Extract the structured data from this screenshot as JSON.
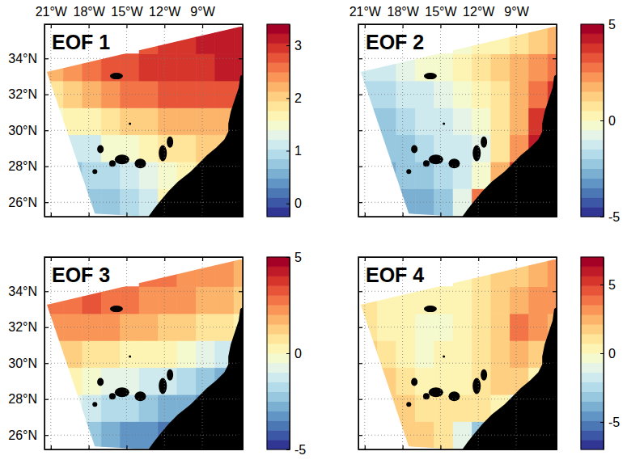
{
  "chart_data": [
    {
      "type": "heatmap",
      "title": "EOF 1",
      "x": [
        -20.75,
        -19.25,
        -17.75,
        -16.25,
        -14.75,
        -13.25,
        -11.75,
        -10.25,
        -8.75,
        -7.25,
        -5.75
      ],
      "y": [
        26,
        27.5,
        29,
        30.5,
        32,
        33.5,
        35
      ],
      "cells": [
        [
          null,
          null,
          0.7,
          0.8,
          1.0,
          1.1,
          1.6,
          null,
          null,
          null,
          null
        ],
        [
          null,
          0.8,
          0.9,
          1.0,
          1.2,
          1.3,
          1.5,
          1.7,
          1.9,
          null,
          null
        ],
        [
          null,
          1.1,
          1.2,
          1.4,
          1.5,
          1.7,
          1.8,
          1.9,
          2.0,
          2.0,
          null
        ],
        [
          1.5,
          1.6,
          1.7,
          1.9,
          2.0,
          2.1,
          2.2,
          2.2,
          2.3,
          2.3,
          null
        ],
        [
          1.9,
          2.0,
          2.2,
          2.4,
          2.5,
          2.6,
          2.7,
          2.7,
          2.8,
          2.8,
          2.8
        ],
        [
          2.3,
          2.4,
          2.6,
          2.7,
          2.8,
          2.9,
          2.9,
          3.0,
          3.0,
          3.1,
          3.1
        ],
        [
          null,
          null,
          null,
          null,
          null,
          2.8,
          2.9,
          3.0,
          3.1,
          3.1,
          3.2
        ]
      ],
      "xlim": [
        -21.5,
        -5.8
      ],
      "ylim": [
        25.2,
        35.9
      ],
      "xticks": [
        {
          "value": -21,
          "label": "21°W"
        },
        {
          "value": -18,
          "label": "18°W"
        },
        {
          "value": -15,
          "label": "15°W"
        },
        {
          "value": -12,
          "label": "12°W"
        },
        {
          "value": -9,
          "label": "9°W"
        }
      ],
      "yticks": [
        {
          "value": 26,
          "label": "26°N"
        },
        {
          "value": 28,
          "label": "28°N"
        },
        {
          "value": 30,
          "label": "30°N"
        },
        {
          "value": 32,
          "label": "32°N"
        },
        {
          "value": 34,
          "label": "34°N"
        }
      ],
      "grid": true,
      "colorbar": {
        "range": [
          -0.25,
          3.4
        ],
        "ticks": [
          0,
          1,
          2,
          3
        ]
      }
    },
    {
      "type": "heatmap",
      "title": "EOF 2",
      "x": [
        -20.75,
        -19.25,
        -17.75,
        -16.25,
        -14.75,
        -13.25,
        -11.75,
        -10.25,
        -8.75,
        -7.25,
        -5.75
      ],
      "y": [
        26,
        27.5,
        29,
        30.5,
        32,
        33.5,
        35
      ],
      "cells": [
        [
          null,
          null,
          -3.0,
          -2.7,
          -2.2,
          -1.0,
          2.5,
          null,
          null,
          null,
          null
        ],
        [
          null,
          -2.8,
          -2.5,
          -2.2,
          -1.8,
          -1.2,
          -0.2,
          1.5,
          3.5,
          null,
          null
        ],
        [
          null,
          -2.4,
          -2.1,
          -1.8,
          -1.5,
          -1.2,
          -0.6,
          0.5,
          2.0,
          4.0,
          null
        ],
        [
          -2.4,
          -2.1,
          -1.8,
          -1.5,
          -1.2,
          -0.8,
          -0.3,
          0.5,
          1.8,
          3.5,
          null
        ],
        [
          -2.0,
          -1.7,
          -1.4,
          -1.1,
          -0.8,
          -0.4,
          0,
          0.6,
          1.5,
          2.5,
          3.5
        ],
        [
          -1.5,
          -1.2,
          -0.8,
          -0.5,
          -0.2,
          0.2,
          0.5,
          1.0,
          1.5,
          2.0,
          2.5
        ],
        [
          null,
          null,
          null,
          null,
          null,
          -0.3,
          0,
          0.3,
          0.8,
          1.2,
          1.5
        ]
      ],
      "xlim": [
        -21.5,
        -5.8
      ],
      "ylim": [
        25.2,
        35.9
      ],
      "xticks": [
        {
          "value": -21,
          "label": "21°W"
        },
        {
          "value": -18,
          "label": "18°W"
        },
        {
          "value": -15,
          "label": "15°W"
        },
        {
          "value": -12,
          "label": "12°W"
        },
        {
          "value": -9,
          "label": "9°W"
        }
      ],
      "yticks": [
        26,
        28,
        30,
        32,
        34
      ],
      "grid": true,
      "tick_labels": "x",
      "colorbar": {
        "range": [
          -5,
          5
        ],
        "ticks": [
          -5,
          0,
          5
        ]
      }
    },
    {
      "type": "heatmap",
      "title": "EOF 3",
      "x": [
        -20.75,
        -19.25,
        -17.75,
        -16.25,
        -14.75,
        -13.25,
        -11.75,
        -10.25,
        -8.75,
        -7.25,
        -5.75
      ],
      "y": [
        26,
        27.5,
        29,
        30.5,
        32,
        33.5,
        35
      ],
      "cells": [
        [
          null,
          null,
          -2.4,
          -2.8,
          -3.1,
          -3.4,
          -3.8,
          null,
          null,
          null,
          null
        ],
        [
          null,
          -1.0,
          -1.4,
          -1.7,
          -2.0,
          -2.3,
          -2.6,
          -3.0,
          -3.5,
          null,
          null
        ],
        [
          null,
          0,
          -0.3,
          -0.6,
          -0.9,
          -1.1,
          -1.4,
          -1.7,
          -2.2,
          -2.8,
          null
        ],
        [
          1.0,
          1.0,
          0.9,
          0.6,
          0.4,
          0.2,
          0,
          -0.3,
          -0.8,
          -1.5,
          null
        ],
        [
          2.0,
          2.1,
          2.2,
          2.0,
          1.8,
          1.6,
          1.4,
          1.2,
          0.9,
          0.5,
          0
        ],
        [
          2.8,
          2.9,
          3.0,
          2.8,
          2.6,
          2.4,
          2.2,
          2.0,
          1.8,
          1.5,
          1.2
        ],
        [
          null,
          null,
          null,
          null,
          null,
          2.8,
          2.6,
          2.4,
          2.2,
          2.0,
          1.8
        ]
      ],
      "xlim": [
        -21.5,
        -5.8
      ],
      "ylim": [
        25.2,
        35.9
      ],
      "xticks": [
        -21,
        -18,
        -15,
        -12,
        -9
      ],
      "yticks": [
        {
          "value": 26,
          "label": "26°N"
        },
        {
          "value": 28,
          "label": "28°N"
        },
        {
          "value": 30,
          "label": "30°N"
        },
        {
          "value": 32,
          "label": "32°N"
        },
        {
          "value": 34,
          "label": "34°N"
        }
      ],
      "grid": true,
      "tick_labels": "y",
      "colorbar": {
        "range": [
          -5,
          5
        ],
        "ticks": [
          -5,
          0,
          5
        ]
      }
    },
    {
      "type": "heatmap",
      "title": "EOF 4",
      "x": [
        -20.75,
        -19.25,
        -17.75,
        -16.25,
        -14.75,
        -13.25,
        -11.75,
        -10.25,
        -8.75,
        -7.25,
        -5.75
      ],
      "y": [
        26,
        27.5,
        29,
        30.5,
        32,
        33.5,
        35
      ],
      "cells": [
        [
          null,
          null,
          2.0,
          1.5,
          1.0,
          -1.0,
          -3.0,
          null,
          null,
          null,
          null
        ],
        [
          null,
          2.0,
          1.5,
          1.0,
          1.2,
          1.0,
          0.8,
          0.5,
          -1.0,
          null,
          null
        ],
        [
          null,
          1.5,
          1.0,
          0.5,
          0.3,
          0.5,
          1.0,
          1.5,
          1.5,
          0.5,
          null
        ],
        [
          1.5,
          1.0,
          0.3,
          -0.2,
          0,
          0.3,
          1.0,
          2.0,
          2.5,
          2.0,
          null
        ],
        [
          1.0,
          0.5,
          0,
          -0.3,
          -0.2,
          0.2,
          0.8,
          1.8,
          3.5,
          3.0,
          2.5
        ],
        [
          1.0,
          0.5,
          0.2,
          0,
          0,
          0.3,
          0.8,
          1.5,
          2.5,
          3.0,
          3.2
        ],
        [
          null,
          null,
          null,
          null,
          null,
          0.5,
          1.0,
          1.5,
          2.0,
          2.5,
          3.0
        ]
      ],
      "xlim": [
        -21.5,
        -5.8
      ],
      "ylim": [
        25.2,
        35.9
      ],
      "xticks": [
        -21,
        -18,
        -15,
        -12,
        -9
      ],
      "yticks": [
        26,
        28,
        30,
        32,
        34
      ],
      "grid": true,
      "tick_labels": false,
      "colorbar": {
        "range": [
          -7,
          7
        ],
        "ticks": [
          -5,
          0,
          5
        ]
      }
    }
  ]
}
